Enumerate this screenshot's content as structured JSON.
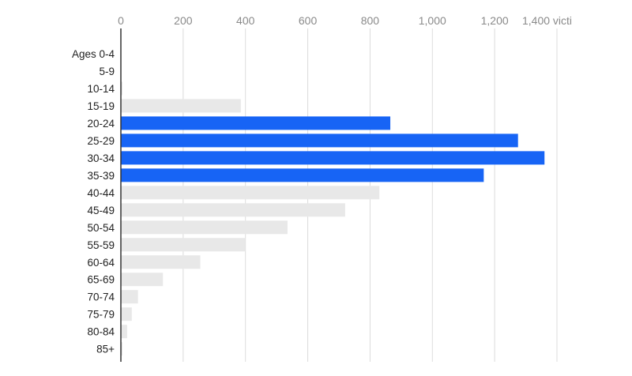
{
  "chart_data": {
    "type": "bar",
    "orientation": "horizontal",
    "categories": [
      "Ages 0-4",
      "5-9",
      "10-14",
      "15-19",
      "20-24",
      "25-29",
      "30-34",
      "35-39",
      "40-44",
      "45-49",
      "50-54",
      "55-59",
      "60-64",
      "65-69",
      "70-74",
      "75-79",
      "80-84",
      "85+"
    ],
    "values": [
      0,
      0,
      5,
      385,
      865,
      1275,
      1360,
      1165,
      830,
      720,
      535,
      400,
      255,
      135,
      55,
      35,
      20,
      5
    ],
    "highlighted": [
      false,
      false,
      false,
      false,
      true,
      true,
      true,
      true,
      false,
      false,
      false,
      false,
      false,
      false,
      false,
      false,
      false,
      false
    ],
    "x_ticks": [
      0,
      200,
      400,
      600,
      800,
      1000,
      1200,
      1400
    ],
    "x_tick_labels": [
      "0",
      "200",
      "400",
      "600",
      "800",
      "1,000",
      "1,200",
      "1,400 victi"
    ],
    "xlim": [
      0,
      1400
    ],
    "xaxis_position": "top",
    "grid": true,
    "title": "",
    "xlabel": "",
    "ylabel": "",
    "colors": {
      "highlight": "#1764f5",
      "default": "#e8e8e8",
      "grid": "#dcdcdc",
      "axis": "#333333",
      "tick_text": "#8a8a8a",
      "label_text": "#222222"
    }
  }
}
